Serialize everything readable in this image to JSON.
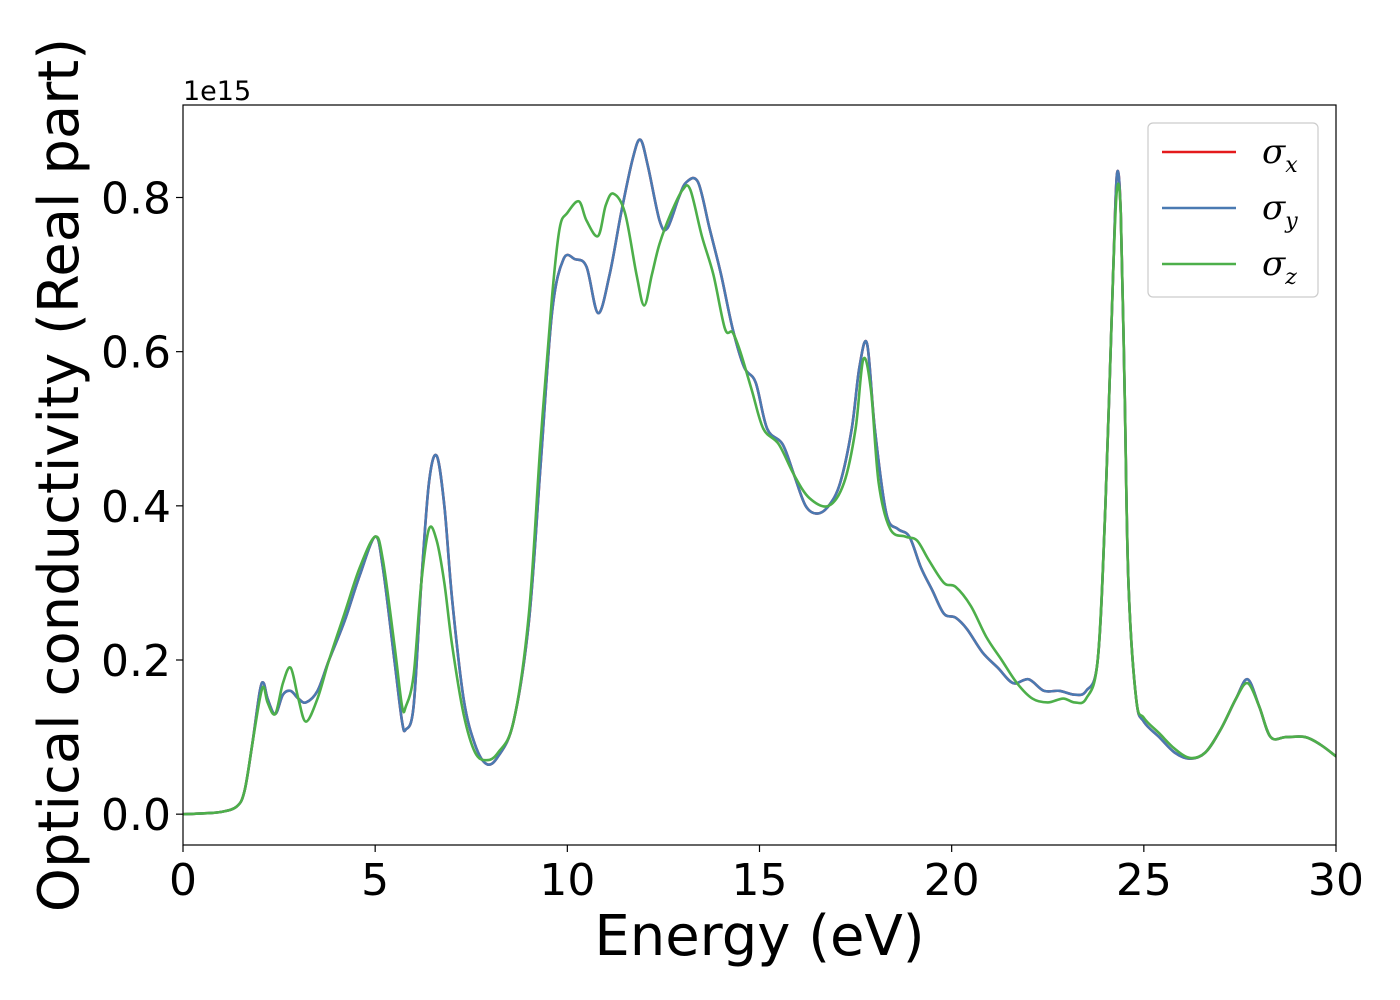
{
  "chart_data": {
    "type": "line",
    "xlabel": "Energy (eV)",
    "ylabel": "Optical conductivity (Real part)",
    "y_offset_label": "1e15",
    "xlim": [
      0,
      30
    ],
    "ylim": [
      -0.04,
      0.92
    ],
    "x_ticks": [
      0,
      5,
      10,
      15,
      20,
      25,
      30
    ],
    "x_tick_labels": [
      "0",
      "5",
      "10",
      "15",
      "20",
      "25",
      "30"
    ],
    "y_ticks": [
      0.0,
      0.2,
      0.4,
      0.6,
      0.8
    ],
    "y_tick_labels": [
      "0.0",
      "0.2",
      "0.4",
      "0.6",
      "0.8"
    ],
    "grid": false,
    "legend_position": "top-right",
    "series": [
      {
        "name": "σx",
        "legend_symbol": "σ",
        "legend_sub": "x",
        "color": "#e41a1c",
        "x": [
          0,
          0.5,
          1,
          1.4,
          1.6,
          1.8,
          2.0,
          2.1,
          2.2,
          2.4,
          2.6,
          2.8,
          3.0,
          3.2,
          3.5,
          3.8,
          4.2,
          4.6,
          5.0,
          5.2,
          5.5,
          5.7,
          5.8,
          6.0,
          6.2,
          6.4,
          6.6,
          6.8,
          7.0,
          7.3,
          7.6,
          7.9,
          8.2,
          8.6,
          9.0,
          9.3,
          9.6,
          9.9,
          10.2,
          10.5,
          10.8,
          11.1,
          11.4,
          11.7,
          11.9,
          12.1,
          12.4,
          12.6,
          12.9,
          13.1,
          13.4,
          13.7,
          14.0,
          14.3,
          14.6,
          14.9,
          15.2,
          15.6,
          15.9,
          16.2,
          16.5,
          16.8,
          17.1,
          17.4,
          17.6,
          17.8,
          18.0,
          18.3,
          18.6,
          18.9,
          19.2,
          19.5,
          19.8,
          20.1,
          20.4,
          20.8,
          21.2,
          21.6,
          22.0,
          22.4,
          22.8,
          23.2,
          23.5,
          23.8,
          24.0,
          24.2,
          24.3,
          24.4,
          24.5,
          24.6,
          24.8,
          25.0,
          25.4,
          25.8,
          26.2,
          26.6,
          27.0,
          27.4,
          27.7,
          28.0,
          28.3,
          28.7,
          29.2,
          29.6,
          30.0
        ],
        "values": [
          0.0,
          0.001,
          0.003,
          0.01,
          0.03,
          0.09,
          0.16,
          0.17,
          0.15,
          0.13,
          0.155,
          0.16,
          0.15,
          0.145,
          0.16,
          0.2,
          0.25,
          0.31,
          0.36,
          0.32,
          0.2,
          0.12,
          0.11,
          0.14,
          0.3,
          0.43,
          0.465,
          0.4,
          0.28,
          0.15,
          0.09,
          0.065,
          0.075,
          0.12,
          0.25,
          0.45,
          0.65,
          0.72,
          0.72,
          0.71,
          0.65,
          0.7,
          0.78,
          0.85,
          0.875,
          0.84,
          0.77,
          0.76,
          0.8,
          0.82,
          0.82,
          0.76,
          0.7,
          0.63,
          0.58,
          0.56,
          0.5,
          0.48,
          0.44,
          0.4,
          0.39,
          0.4,
          0.43,
          0.5,
          0.58,
          0.61,
          0.5,
          0.39,
          0.37,
          0.36,
          0.32,
          0.29,
          0.26,
          0.255,
          0.24,
          0.21,
          0.19,
          0.17,
          0.175,
          0.16,
          0.16,
          0.155,
          0.16,
          0.2,
          0.4,
          0.7,
          0.83,
          0.78,
          0.55,
          0.3,
          0.15,
          0.12,
          0.1,
          0.08,
          0.072,
          0.08,
          0.11,
          0.15,
          0.175,
          0.14,
          0.1,
          0.1,
          0.1,
          0.09,
          0.075
        ]
      },
      {
        "name": "σy",
        "legend_symbol": "σ",
        "legend_sub": "y",
        "color": "#4a7ab2",
        "x": [
          0,
          0.5,
          1,
          1.4,
          1.6,
          1.8,
          2.0,
          2.1,
          2.2,
          2.4,
          2.6,
          2.8,
          3.0,
          3.2,
          3.5,
          3.8,
          4.2,
          4.6,
          5.0,
          5.2,
          5.5,
          5.7,
          5.8,
          6.0,
          6.2,
          6.4,
          6.6,
          6.8,
          7.0,
          7.3,
          7.6,
          7.9,
          8.2,
          8.6,
          9.0,
          9.3,
          9.6,
          9.9,
          10.2,
          10.5,
          10.8,
          11.1,
          11.4,
          11.7,
          11.9,
          12.1,
          12.4,
          12.6,
          12.9,
          13.1,
          13.4,
          13.7,
          14.0,
          14.3,
          14.6,
          14.9,
          15.2,
          15.6,
          15.9,
          16.2,
          16.5,
          16.8,
          17.1,
          17.4,
          17.6,
          17.8,
          18.0,
          18.3,
          18.6,
          18.9,
          19.2,
          19.5,
          19.8,
          20.1,
          20.4,
          20.8,
          21.2,
          21.6,
          22.0,
          22.4,
          22.8,
          23.2,
          23.5,
          23.8,
          24.0,
          24.2,
          24.3,
          24.4,
          24.5,
          24.6,
          24.8,
          25.0,
          25.4,
          25.8,
          26.2,
          26.6,
          27.0,
          27.4,
          27.7,
          28.0,
          28.3,
          28.7,
          29.2,
          29.6,
          30.0
        ],
        "values": [
          0.0,
          0.001,
          0.003,
          0.01,
          0.03,
          0.09,
          0.16,
          0.17,
          0.15,
          0.13,
          0.155,
          0.16,
          0.15,
          0.145,
          0.16,
          0.2,
          0.25,
          0.31,
          0.36,
          0.32,
          0.2,
          0.12,
          0.11,
          0.14,
          0.3,
          0.43,
          0.465,
          0.4,
          0.28,
          0.15,
          0.09,
          0.065,
          0.075,
          0.12,
          0.25,
          0.45,
          0.65,
          0.72,
          0.72,
          0.71,
          0.65,
          0.7,
          0.78,
          0.85,
          0.875,
          0.84,
          0.77,
          0.76,
          0.8,
          0.82,
          0.82,
          0.76,
          0.7,
          0.63,
          0.58,
          0.56,
          0.5,
          0.48,
          0.44,
          0.4,
          0.39,
          0.4,
          0.43,
          0.5,
          0.58,
          0.61,
          0.5,
          0.39,
          0.37,
          0.36,
          0.32,
          0.29,
          0.26,
          0.255,
          0.24,
          0.21,
          0.19,
          0.17,
          0.175,
          0.16,
          0.16,
          0.155,
          0.16,
          0.2,
          0.4,
          0.7,
          0.83,
          0.78,
          0.55,
          0.3,
          0.15,
          0.12,
          0.1,
          0.08,
          0.072,
          0.08,
          0.11,
          0.15,
          0.175,
          0.14,
          0.1,
          0.1,
          0.1,
          0.09,
          0.075
        ]
      },
      {
        "name": "σz",
        "legend_symbol": "σ",
        "legend_sub": "z",
        "color": "#4daf4a",
        "x": [
          0,
          0.5,
          1,
          1.4,
          1.6,
          1.8,
          2.0,
          2.1,
          2.2,
          2.4,
          2.6,
          2.8,
          3.0,
          3.2,
          3.5,
          3.8,
          4.2,
          4.6,
          5.0,
          5.2,
          5.5,
          5.7,
          5.8,
          6.0,
          6.2,
          6.4,
          6.6,
          6.8,
          7.0,
          7.3,
          7.6,
          7.9,
          8.2,
          8.6,
          9.0,
          9.3,
          9.6,
          9.8,
          10.0,
          10.3,
          10.5,
          10.8,
          11.0,
          11.2,
          11.5,
          11.8,
          12.0,
          12.2,
          12.4,
          12.7,
          13.0,
          13.2,
          13.5,
          13.8,
          14.1,
          14.3,
          14.5,
          14.8,
          15.1,
          15.5,
          15.9,
          16.3,
          16.8,
          17.2,
          17.5,
          17.7,
          17.9,
          18.1,
          18.4,
          18.8,
          19.1,
          19.4,
          19.8,
          20.1,
          20.5,
          20.9,
          21.3,
          21.7,
          22.1,
          22.5,
          22.9,
          23.2,
          23.5,
          23.8,
          24.0,
          24.2,
          24.3,
          24.4,
          24.5,
          24.6,
          24.8,
          25.0,
          25.4,
          25.8,
          26.2,
          26.6,
          27.0,
          27.4,
          27.7,
          28.0,
          28.3,
          28.7,
          29.2,
          29.6,
          30.0
        ],
        "values": [
          0.0,
          0.001,
          0.003,
          0.01,
          0.03,
          0.09,
          0.15,
          0.165,
          0.145,
          0.13,
          0.17,
          0.19,
          0.15,
          0.12,
          0.15,
          0.2,
          0.26,
          0.32,
          0.36,
          0.33,
          0.22,
          0.14,
          0.14,
          0.18,
          0.3,
          0.37,
          0.355,
          0.3,
          0.22,
          0.13,
          0.08,
          0.07,
          0.08,
          0.12,
          0.26,
          0.48,
          0.67,
          0.76,
          0.78,
          0.795,
          0.77,
          0.75,
          0.79,
          0.805,
          0.78,
          0.7,
          0.66,
          0.7,
          0.74,
          0.78,
          0.81,
          0.81,
          0.75,
          0.7,
          0.63,
          0.625,
          0.6,
          0.55,
          0.5,
          0.48,
          0.44,
          0.41,
          0.4,
          0.43,
          0.5,
          0.59,
          0.55,
          0.43,
          0.37,
          0.36,
          0.355,
          0.33,
          0.3,
          0.295,
          0.27,
          0.23,
          0.2,
          0.17,
          0.15,
          0.145,
          0.15,
          0.145,
          0.15,
          0.2,
          0.4,
          0.7,
          0.81,
          0.78,
          0.55,
          0.3,
          0.15,
          0.125,
          0.105,
          0.085,
          0.073,
          0.08,
          0.11,
          0.15,
          0.17,
          0.14,
          0.1,
          0.1,
          0.1,
          0.09,
          0.075
        ]
      }
    ]
  }
}
